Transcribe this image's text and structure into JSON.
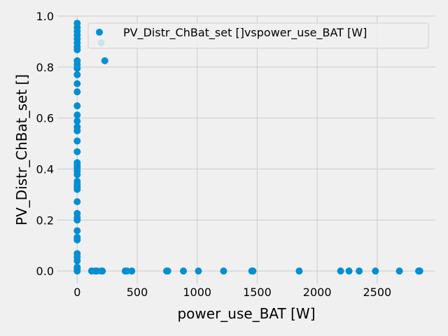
{
  "chart_data": {
    "type": "scatter",
    "xlabel": "power_use_BAT [W]",
    "ylabel": "PV_Distr_ChBat_set []",
    "xlim": [
      -165,
      2985
    ],
    "ylim": [
      -0.049,
      1.0
    ],
    "xticks": [
      0,
      500,
      1000,
      1500,
      2000,
      2500
    ],
    "yticks": [
      0.0,
      0.2,
      0.4,
      0.6,
      0.8,
      1.0
    ],
    "x_tick_labels": [
      "0",
      "500",
      "1000",
      "1500",
      "2000",
      "2500"
    ],
    "y_tick_labels": [
      "0.0",
      "0.2",
      "0.4",
      "0.6",
      "0.8",
      "1.0"
    ],
    "grid": true,
    "legend_position": "top-right",
    "marker_color": "#008fd5",
    "series": [
      {
        "name": "PV_Distr_ChBat_set []vspower_use_BAT [W]",
        "points": [
          [
            0,
            0.972
          ],
          [
            0,
            0.955
          ],
          [
            0,
            0.94
          ],
          [
            0,
            0.925
          ],
          [
            0,
            0.91
          ],
          [
            0,
            0.895
          ],
          [
            0,
            0.88
          ],
          [
            0,
            0.868
          ],
          [
            0,
            0.825
          ],
          [
            0,
            0.81
          ],
          [
            0,
            0.795
          ],
          [
            0,
            0.77
          ],
          [
            0,
            0.735
          ],
          [
            0,
            0.703
          ],
          [
            0,
            0.648
          ],
          [
            0,
            0.612
          ],
          [
            0,
            0.588
          ],
          [
            0,
            0.565
          ],
          [
            0,
            0.55
          ],
          [
            0,
            0.51
          ],
          [
            0,
            0.468
          ],
          [
            0,
            0.425
          ],
          [
            0,
            0.415
          ],
          [
            0,
            0.405
          ],
          [
            0,
            0.392
          ],
          [
            0,
            0.378
          ],
          [
            0,
            0.352
          ],
          [
            0,
            0.34
          ],
          [
            0,
            0.33
          ],
          [
            0,
            0.32
          ],
          [
            0,
            0.272
          ],
          [
            0,
            0.226
          ],
          [
            0,
            0.21
          ],
          [
            0,
            0.2
          ],
          [
            0,
            0.158
          ],
          [
            0,
            0.132
          ],
          [
            0,
            0.122
          ],
          [
            0,
            0.068
          ],
          [
            0,
            0.055
          ],
          [
            0,
            0.04
          ],
          [
            0,
            0.015
          ],
          [
            0,
            0.008
          ],
          [
            0,
            0.0
          ],
          [
            200,
            0.895
          ],
          [
            230,
            0.825
          ],
          [
            120,
            0.0
          ],
          [
            150,
            0.0
          ],
          [
            165,
            0.0
          ],
          [
            200,
            0.0
          ],
          [
            210,
            0.0
          ],
          [
            400,
            0.0
          ],
          [
            415,
            0.0
          ],
          [
            455,
            0.0
          ],
          [
            745,
            0.0
          ],
          [
            755,
            0.0
          ],
          [
            885,
            0.0
          ],
          [
            1010,
            0.0
          ],
          [
            1220,
            0.0
          ],
          [
            1455,
            0.0
          ],
          [
            1465,
            0.0
          ],
          [
            1850,
            0.0
          ],
          [
            2195,
            0.0
          ],
          [
            2265,
            0.0
          ],
          [
            2350,
            0.0
          ],
          [
            2485,
            0.0
          ],
          [
            2685,
            0.0
          ],
          [
            2845,
            0.0
          ],
          [
            2850,
            0.0
          ],
          [
            2855,
            0.0
          ]
        ]
      }
    ]
  }
}
